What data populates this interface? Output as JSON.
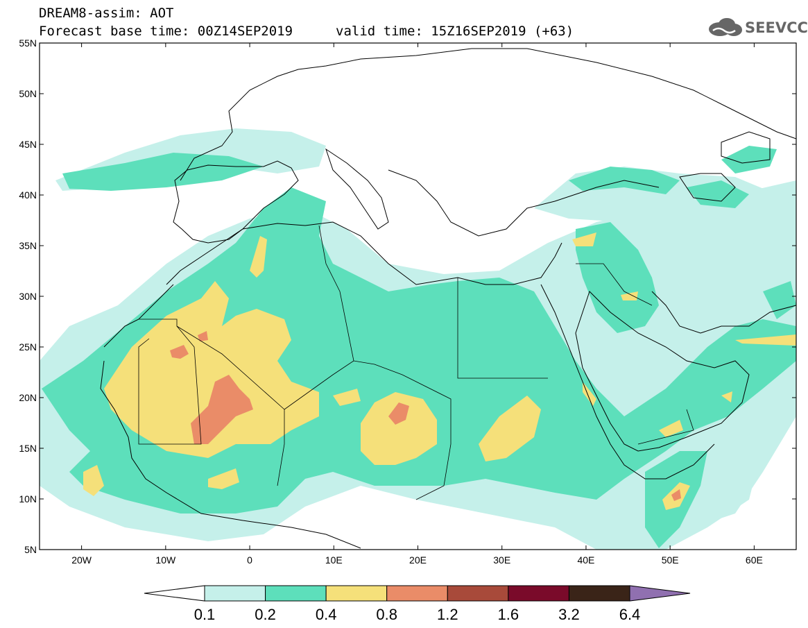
{
  "title": {
    "line1": "DREAM8-assim: AOT",
    "base_time": "Forecast base time: 00Z14SEP2019",
    "valid_time": "valid time: 15Z16SEP2019 (+63)"
  },
  "logo": {
    "text": "SEEVCCC",
    "icon": "cloud-icon"
  },
  "map": {
    "lon_range": [
      -25,
      65
    ],
    "lat_range": [
      5,
      55
    ],
    "x_ticks": [
      "20W",
      "10W",
      "0",
      "10E",
      "20E",
      "30E",
      "40E",
      "50E",
      "60E"
    ],
    "y_ticks": [
      "55N",
      "50N",
      "45N",
      "40N",
      "35N",
      "30N",
      "25N",
      "20N",
      "15N",
      "10N",
      "5N"
    ]
  },
  "colorbar": {
    "levels": [
      "0.1",
      "0.2",
      "0.4",
      "0.8",
      "1.2",
      "1.6",
      "3.2",
      "6.4"
    ],
    "colors": [
      "#c5f0ea",
      "#5ddfbb",
      "#f5e07a",
      "#ea8c68",
      "#a84a3a",
      "#7a0a2a",
      "#3a2418",
      "#9070b0"
    ]
  }
}
